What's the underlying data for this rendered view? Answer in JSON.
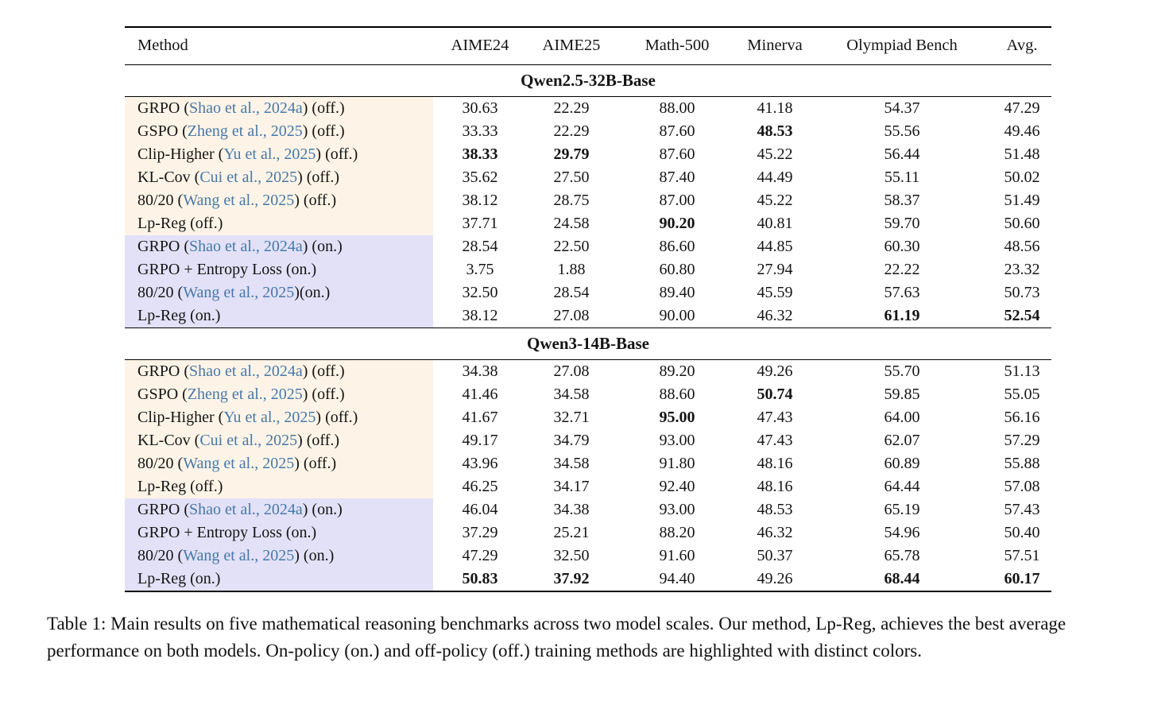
{
  "colors": {
    "citation": "#4878a8",
    "off_policy_highlight": "#fdf4e7",
    "on_policy_highlight": "#e2e1f7",
    "rule": "#000000"
  },
  "caption": "Table 1: Main results on five mathematical reasoning benchmarks across two model scales. Our method, Lp-Reg, achieves the best average performance on both models. On-policy (on.) and off-policy (off.) training methods are highlighted with distinct colors.",
  "table": {
    "headers": [
      "Method",
      "AIME24",
      "AIME25",
      "Math-500",
      "Minerva",
      "Olympiad Bench",
      "Avg."
    ],
    "sections": [
      {
        "title": "Qwen2.5-32B-Base",
        "rows": [
          {
            "method_prefix": "GRPO (",
            "citation": "Shao et al., 2024a",
            "method_suffix": ") (off.)",
            "policy": "off",
            "values": [
              "30.63",
              "22.29",
              "88.00",
              "41.18",
              "54.37",
              "47.29"
            ],
            "bold": []
          },
          {
            "method_prefix": "GSPO (",
            "citation": "Zheng et al., 2025",
            "method_suffix": ") (off.)",
            "policy": "off",
            "values": [
              "33.33",
              "22.29",
              "87.60",
              "48.53",
              "55.56",
              "49.46"
            ],
            "bold": [
              3
            ]
          },
          {
            "method_prefix": "Clip-Higher (",
            "citation": "Yu et al., 2025",
            "method_suffix": ") (off.)",
            "policy": "off",
            "values": [
              "38.33",
              "29.79",
              "87.60",
              "45.22",
              "56.44",
              "51.48"
            ],
            "bold": [
              0,
              1
            ]
          },
          {
            "method_prefix": "KL-Cov (",
            "citation": "Cui et al., 2025",
            "method_suffix": ") (off.)",
            "policy": "off",
            "values": [
              "35.62",
              "27.50",
              "87.40",
              "44.49",
              "55.11",
              "50.02"
            ],
            "bold": []
          },
          {
            "method_prefix": "80/20 (",
            "citation": "Wang et al., 2025",
            "method_suffix": ") (off.)",
            "policy": "off",
            "values": [
              "38.12",
              "28.75",
              "87.00",
              "45.22",
              "58.37",
              "51.49"
            ],
            "bold": []
          },
          {
            "method_prefix": "Lp-Reg (off.)",
            "citation": null,
            "method_suffix": "",
            "policy": "off",
            "values": [
              "37.71",
              "24.58",
              "90.20",
              "40.81",
              "59.70",
              "50.60"
            ],
            "bold": [
              2
            ]
          },
          {
            "method_prefix": "GRPO (",
            "citation": "Shao et al., 2024a",
            "method_suffix": ") (on.)",
            "policy": "on",
            "values": [
              "28.54",
              "22.50",
              "86.60",
              "44.85",
              "60.30",
              "48.56"
            ],
            "bold": []
          },
          {
            "method_prefix": "GRPO + Entropy Loss (on.)",
            "citation": null,
            "method_suffix": "",
            "policy": "on",
            "values": [
              "3.75",
              "1.88",
              "60.80",
              "27.94",
              "22.22",
              "23.32"
            ],
            "bold": []
          },
          {
            "method_prefix": "80/20 (",
            "citation": "Wang et al., 2025",
            "method_suffix": ")(on.)",
            "policy": "on",
            "values": [
              "32.50",
              "28.54",
              "89.40",
              "45.59",
              "57.63",
              "50.73"
            ],
            "bold": []
          },
          {
            "method_prefix": "Lp-Reg (on.)",
            "citation": null,
            "method_suffix": "",
            "policy": "on",
            "values": [
              "38.12",
              "27.08",
              "90.00",
              "46.32",
              "61.19",
              "52.54"
            ],
            "bold": [
              4,
              5
            ]
          }
        ]
      },
      {
        "title": "Qwen3-14B-Base",
        "rows": [
          {
            "method_prefix": "GRPO (",
            "citation": "Shao et al., 2024a",
            "method_suffix": ") (off.)",
            "policy": "off",
            "values": [
              "34.38",
              "27.08",
              "89.20",
              "49.26",
              "55.70",
              "51.13"
            ],
            "bold": []
          },
          {
            "method_prefix": "GSPO (",
            "citation": "Zheng et al., 2025",
            "method_suffix": ") (off.)",
            "policy": "off",
            "values": [
              "41.46",
              "34.58",
              "88.60",
              "50.74",
              "59.85",
              "55.05"
            ],
            "bold": [
              3
            ]
          },
          {
            "method_prefix": "Clip-Higher (",
            "citation": "Yu et al., 2025",
            "method_suffix": ") (off.)",
            "policy": "off",
            "values": [
              "41.67",
              "32.71",
              "95.00",
              "47.43",
              "64.00",
              "56.16"
            ],
            "bold": [
              2
            ]
          },
          {
            "method_prefix": "KL-Cov (",
            "citation": "Cui et al., 2025",
            "method_suffix": ") (off.)",
            "policy": "off",
            "values": [
              "49.17",
              "34.79",
              "93.00",
              "47.43",
              "62.07",
              "57.29"
            ],
            "bold": []
          },
          {
            "method_prefix": "80/20 (",
            "citation": "Wang et al., 2025",
            "method_suffix": ") (off.)",
            "policy": "off",
            "values": [
              "43.96",
              "34.58",
              "91.80",
              "48.16",
              "60.89",
              "55.88"
            ],
            "bold": []
          },
          {
            "method_prefix": "Lp-Reg (off.)",
            "citation": null,
            "method_suffix": "",
            "policy": "off",
            "values": [
              "46.25",
              "34.17",
              "92.40",
              "48.16",
              "64.44",
              "57.08"
            ],
            "bold": []
          },
          {
            "method_prefix": "GRPO (",
            "citation": "Shao et al., 2024a",
            "method_suffix": ") (on.)",
            "policy": "on",
            "values": [
              "46.04",
              "34.38",
              "93.00",
              "48.53",
              "65.19",
              "57.43"
            ],
            "bold": []
          },
          {
            "method_prefix": "GRPO + Entropy Loss (on.)",
            "citation": null,
            "method_suffix": "",
            "policy": "on",
            "values": [
              "37.29",
              "25.21",
              "88.20",
              "46.32",
              "54.96",
              "50.40"
            ],
            "bold": []
          },
          {
            "method_prefix": "80/20 (",
            "citation": "Wang et al., 2025",
            "method_suffix": ") (on.)",
            "policy": "on",
            "values": [
              "47.29",
              "32.50",
              "91.60",
              "50.37",
              "65.78",
              "57.51"
            ],
            "bold": []
          },
          {
            "method_prefix": "Lp-Reg (on.)",
            "citation": null,
            "method_suffix": "",
            "policy": "on",
            "values": [
              "50.83",
              "37.92",
              "94.40",
              "49.26",
              "68.44",
              "60.17"
            ],
            "bold": [
              0,
              1,
              4,
              5
            ]
          }
        ]
      }
    ]
  }
}
